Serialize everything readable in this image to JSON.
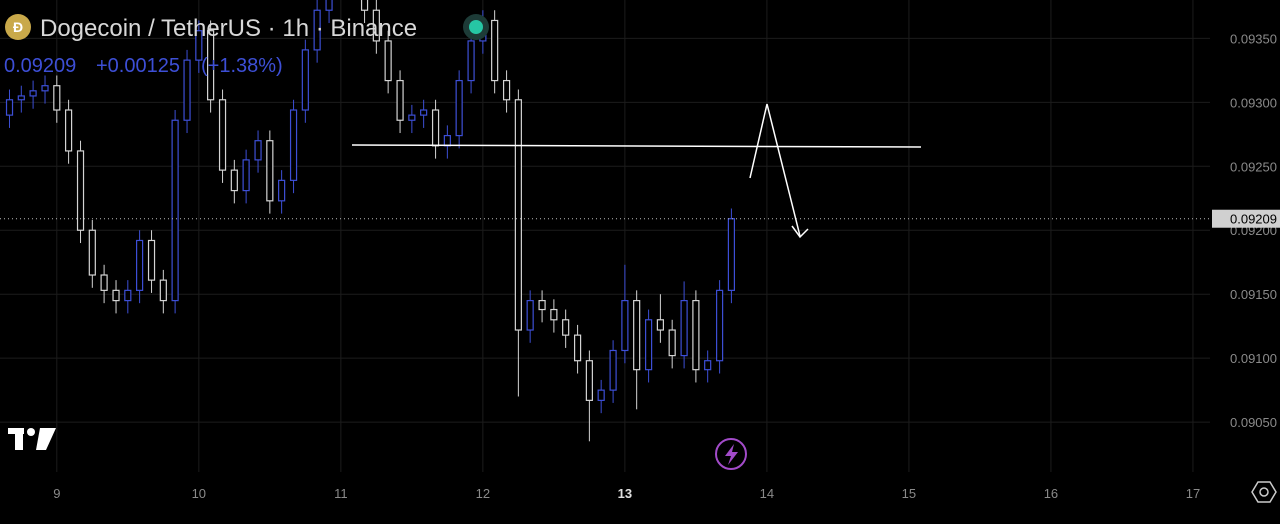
{
  "chart_data": {
    "type": "candlestick",
    "title": "Dogecoin / TetherUS · 1h · Binance",
    "last_price": 0.09209,
    "change": {
      "value": 0.00125,
      "label": "+0.00125"
    },
    "change_percent": {
      "value": 1.38,
      "label": "(+1.38%)"
    },
    "up_color": "#3d4fd6",
    "down_color": "#d4d4d4",
    "grid": true,
    "xlim": [
      8.6,
      17.12
    ],
    "ylim": [
      0.09011,
      0.0938
    ],
    "xticks": [
      9,
      10,
      11,
      12,
      13,
      14,
      15,
      16,
      17
    ],
    "yticks": [
      {
        "value": 0.0905,
        "label": "0.09050"
      },
      {
        "value": 0.091,
        "label": "0.09100"
      },
      {
        "value": 0.0915,
        "label": "0.09150"
      },
      {
        "value": 0.092,
        "label": "0.09200"
      },
      {
        "value": 0.0925,
        "label": "0.09250"
      },
      {
        "value": 0.093,
        "label": "0.09300"
      },
      {
        "value": 0.0935,
        "label": "0.09350"
      }
    ],
    "x": [
      8.667,
      8.75,
      8.833,
      8.917,
      9,
      9.083,
      9.167,
      9.25,
      9.333,
      9.417,
      9.5,
      9.583,
      9.667,
      9.75,
      9.833,
      9.917,
      10,
      10.083,
      10.167,
      10.25,
      10.333,
      10.417,
      10.5,
      10.583,
      10.667,
      10.75,
      10.833,
      10.917,
      11,
      11.083,
      11.167,
      11.25,
      11.333,
      11.417,
      11.5,
      11.583,
      11.667,
      11.75,
      11.833,
      11.917,
      12,
      12.083,
      12.167,
      12.25,
      12.333,
      12.417,
      12.5,
      12.583,
      12.667,
      12.75,
      12.833,
      12.917,
      13,
      13.083,
      13.167,
      13.25,
      13.333,
      13.417,
      13.5,
      13.583,
      13.667,
      13.75
    ],
    "open": [
      0.0929,
      0.09302,
      0.09305,
      0.09309,
      0.09313,
      0.09294,
      0.09262,
      0.092,
      0.09165,
      0.09153,
      0.09145,
      0.09153,
      0.09192,
      0.09161,
      0.09145,
      0.09286,
      0.09333,
      0.09356,
      0.09302,
      0.09247,
      0.09231,
      0.09255,
      0.0927,
      0.09223,
      0.09239,
      0.09294,
      0.09341,
      0.09372,
      0.09395,
      0.09403,
      0.09395,
      0.09372,
      0.09348,
      0.09317,
      0.09286,
      0.0929,
      0.09294,
      0.09266,
      0.09274,
      0.09317,
      0.09348,
      0.09364,
      0.09317,
      0.09302,
      0.09122,
      0.09145,
      0.09138,
      0.0913,
      0.09118,
      0.09098,
      0.09067,
      0.09075,
      0.09106,
      0.09145,
      0.09091,
      0.0913,
      0.09122,
      0.09102,
      0.09145,
      0.09091,
      0.09098,
      0.09153
    ],
    "high": [
      0.0931,
      0.09313,
      0.09317,
      0.09321,
      0.09321,
      0.09302,
      0.0927,
      0.09208,
      0.09173,
      0.09161,
      0.09161,
      0.092,
      0.092,
      0.09169,
      0.09294,
      0.09341,
      0.09364,
      0.09364,
      0.0931,
      0.09255,
      0.09263,
      0.09278,
      0.09278,
      0.09247,
      0.09302,
      0.09349,
      0.0938,
      0.09403,
      0.09411,
      0.09411,
      0.09403,
      0.0938,
      0.09356,
      0.09325,
      0.09298,
      0.09302,
      0.09302,
      0.09282,
      0.09325,
      0.09356,
      0.09372,
      0.09372,
      0.09325,
      0.0931,
      0.09153,
      0.09153,
      0.09146,
      0.09138,
      0.09126,
      0.09106,
      0.09083,
      0.09114,
      0.09173,
      0.09153,
      0.09138,
      0.0915,
      0.0913,
      0.0916,
      0.09153,
      0.09106,
      0.09161,
      0.09217
    ],
    "low": [
      0.0928,
      0.09292,
      0.09295,
      0.09299,
      0.09284,
      0.09252,
      0.0919,
      0.09155,
      0.09143,
      0.09135,
      0.09135,
      0.09143,
      0.09151,
      0.09135,
      0.09135,
      0.09276,
      0.09323,
      0.09292,
      0.09237,
      0.09221,
      0.09221,
      0.09245,
      0.09213,
      0.09213,
      0.09229,
      0.09284,
      0.09331,
      0.09362,
      0.09385,
      0.09385,
      0.09362,
      0.09338,
      0.09307,
      0.09276,
      0.09276,
      0.0928,
      0.09256,
      0.09256,
      0.09264,
      0.09307,
      0.09338,
      0.09307,
      0.09292,
      0.0907,
      0.09112,
      0.09128,
      0.0912,
      0.09108,
      0.09088,
      0.09035,
      0.09057,
      0.09065,
      0.09096,
      0.0906,
      0.09081,
      0.09112,
      0.09092,
      0.09092,
      0.09081,
      0.09081,
      0.09088,
      0.09143
    ],
    "close": [
      0.09302,
      0.09305,
      0.09309,
      0.09313,
      0.09294,
      0.09262,
      0.092,
      0.09165,
      0.09153,
      0.09145,
      0.09153,
      0.09192,
      0.09161,
      0.09145,
      0.09286,
      0.09333,
      0.09356,
      0.09302,
      0.09247,
      0.09231,
      0.09255,
      0.0927,
      0.09223,
      0.09239,
      0.09294,
      0.09341,
      0.09372,
      0.09395,
      0.09403,
      0.09395,
      0.09372,
      0.09348,
      0.09317,
      0.09286,
      0.0929,
      0.09294,
      0.09266,
      0.09274,
      0.09317,
      0.09348,
      0.09364,
      0.09317,
      0.09302,
      0.09122,
      0.09145,
      0.09138,
      0.0913,
      0.09118,
      0.09098,
      0.09067,
      0.09075,
      0.09106,
      0.09145,
      0.09091,
      0.0913,
      0.09122,
      0.09102,
      0.09145,
      0.09091,
      0.09098,
      0.09153,
      0.09209
    ]
  }
}
